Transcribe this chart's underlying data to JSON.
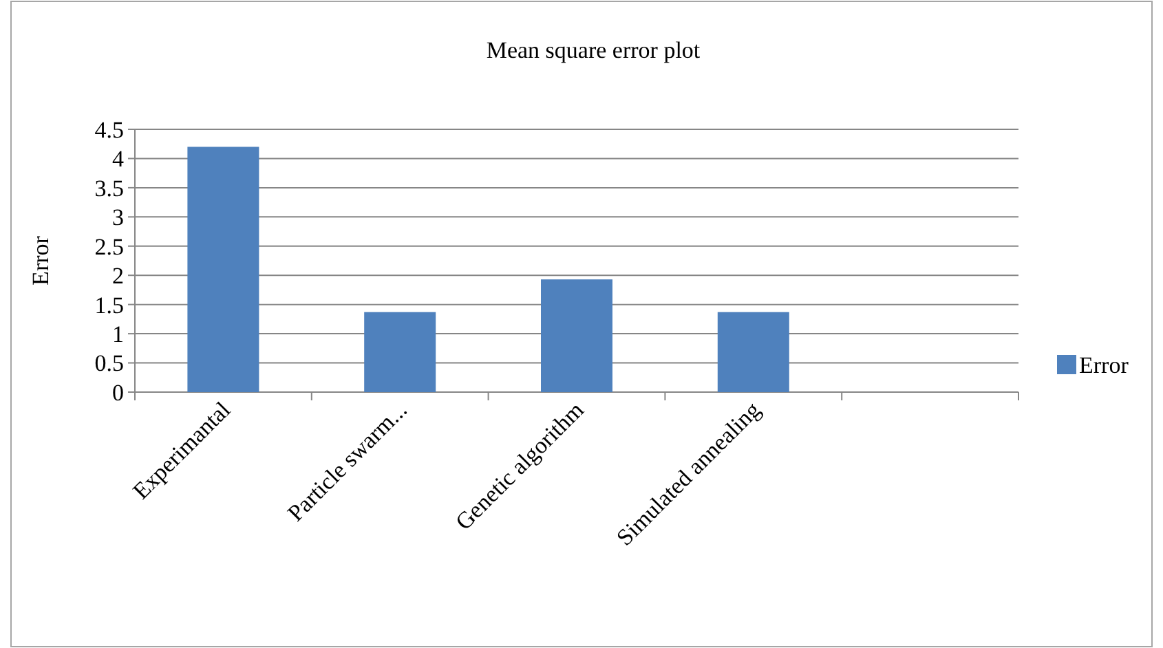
{
  "chart_data": {
    "type": "bar",
    "title": "Mean square error plot",
    "ylabel": "Error",
    "categories": [
      "Experimantal",
      "Particle swarm...",
      "Genetic algorithm",
      "Simulated annealing",
      null
    ],
    "series": [
      {
        "name": "Error",
        "color": "#4f81bd",
        "values": [
          4.2,
          1.37,
          1.93,
          1.37,
          null
        ]
      }
    ],
    "ylim": [
      0,
      4.5
    ],
    "yticks": [
      0,
      0.5,
      1,
      1.5,
      2,
      2.5,
      3,
      3.5,
      4,
      4.5
    ],
    "grid": "y",
    "legend": "right"
  }
}
